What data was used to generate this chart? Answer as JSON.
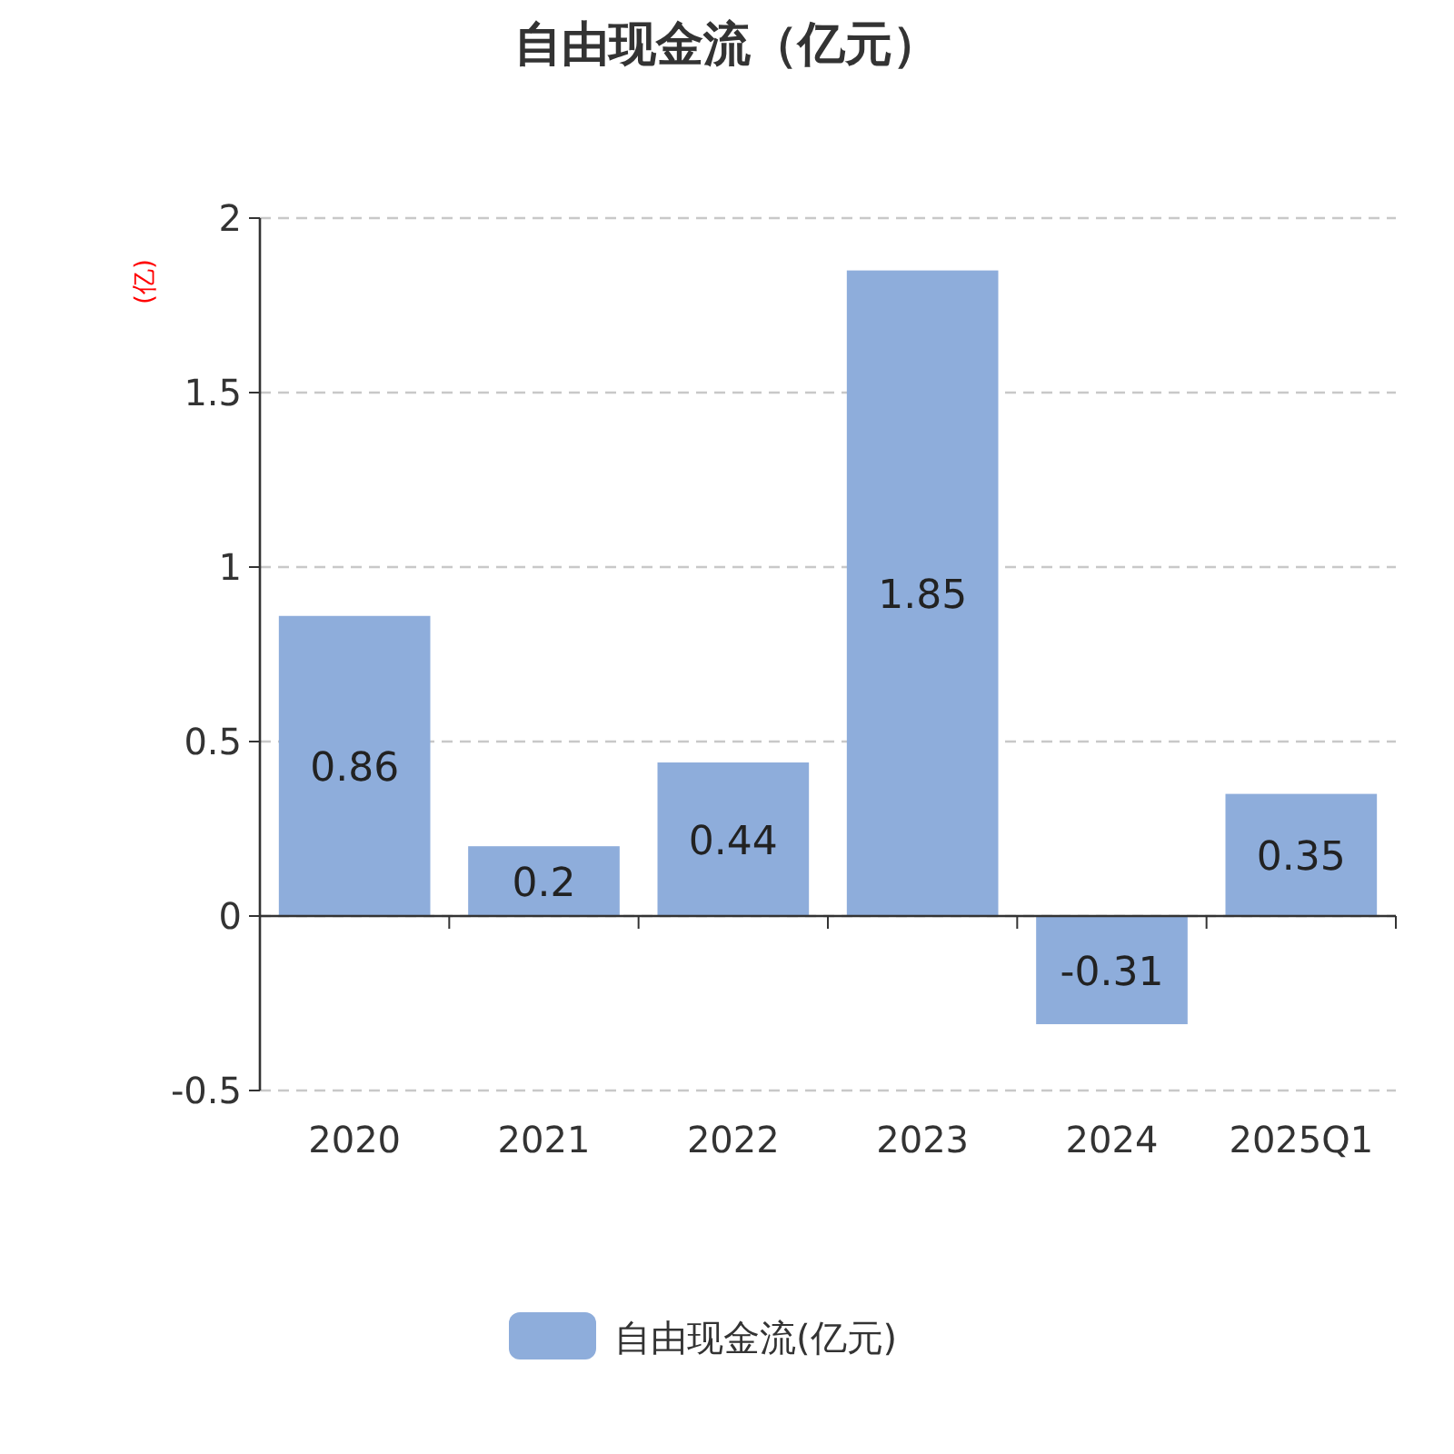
{
  "chart_data": {
    "type": "bar",
    "title": "自由现金流（亿元）",
    "ylabel": "(亿)",
    "categories": [
      "2020",
      "2021",
      "2022",
      "2023",
      "2024",
      "2025Q1"
    ],
    "series": [
      {
        "name": "自由现金流(亿元)",
        "color": "#8eaddb",
        "values": [
          0.86,
          0.2,
          0.44,
          1.85,
          -0.31,
          0.35
        ]
      }
    ],
    "ylim": [
      -0.5,
      2
    ],
    "yticks": [
      -0.5,
      0,
      0.5,
      1,
      1.5,
      2
    ],
    "grid": "y",
    "legend": "bottom",
    "data_labels": true
  }
}
